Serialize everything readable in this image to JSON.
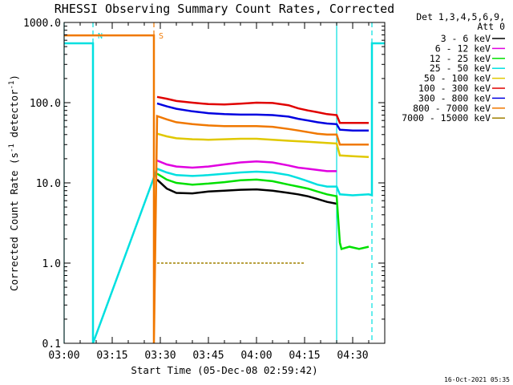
{
  "chart_data": {
    "type": "line",
    "title": "RHESSI Observing Summary Count Rates, Corrected",
    "xlabel": "Start Time (05-Dec-08 02:59:42)",
    "ylabel": "Corrected Count Rate (s",
    "ylabel_sup": "-1",
    "ylabel_mid": " detector",
    "ylabel_sup2": "-1",
    "ylabel_end": ")",
    "yscale": "log",
    "ylim": [
      0.1,
      1000
    ],
    "xlim_minutes": [
      0,
      100
    ],
    "x_ticks": [
      {
        "label": "03:00",
        "minutes": 0
      },
      {
        "label": "03:15",
        "minutes": 15
      },
      {
        "label": "03:30",
        "minutes": 30
      },
      {
        "label": "03:45",
        "minutes": 45
      },
      {
        "label": "04:00",
        "minutes": 60
      },
      {
        "label": "04:15",
        "minutes": 75
      },
      {
        "label": "04:30",
        "minutes": 90
      }
    ],
    "y_ticks": [
      {
        "label": "1000.0",
        "value": 1000
      },
      {
        "label": "100.0",
        "value": 100
      },
      {
        "label": "10.0",
        "value": 10
      },
      {
        "label": "1.0",
        "value": 1
      },
      {
        "label": "0.1",
        "value": 0.1
      }
    ],
    "legend": {
      "header1": "Det 1,3,4,5,6,9,",
      "header2": "Att 0",
      "placement": "right"
    },
    "series": [
      {
        "name": "3 - 6 keV",
        "color": "#000000",
        "x": [
          29,
          32,
          35,
          40,
          45,
          50,
          55,
          60,
          65,
          70,
          73,
          76,
          79,
          82,
          85
        ],
        "y": [
          11,
          8.5,
          7.5,
          7.4,
          7.8,
          8,
          8.2,
          8.3,
          8,
          7.5,
          7.2,
          6.8,
          6.3,
          5.8,
          5.5
        ]
      },
      {
        "name": "6 - 12 keV",
        "color": "#e000e0",
        "x": [
          29,
          32,
          35,
          40,
          45,
          50,
          55,
          60,
          65,
          70,
          73,
          76,
          79,
          82,
          85
        ],
        "y": [
          19,
          17,
          16,
          15.5,
          16,
          17,
          18,
          18.5,
          18,
          16.5,
          15.5,
          15,
          14.5,
          14,
          14
        ]
      },
      {
        "name": "12 - 25 keV",
        "color": "#00e000",
        "x": [
          29,
          32,
          35,
          40,
          45,
          50,
          55,
          60,
          65,
          70,
          73,
          76,
          79,
          82,
          85,
          86,
          86.5,
          89,
          92,
          95
        ],
        "y": [
          13,
          11,
          10,
          9.5,
          9.8,
          10.2,
          10.8,
          11,
          10.5,
          9.5,
          9,
          8.5,
          7.8,
          7.2,
          6.8,
          1.8,
          1.5,
          1.6,
          1.5,
          1.6
        ]
      },
      {
        "name": "25 - 50 keV",
        "color": "#00e0e0",
        "x": [
          0,
          9,
          9,
          29,
          32,
          35,
          40,
          45,
          50,
          55,
          60,
          65,
          70,
          73,
          76,
          79,
          82,
          85,
          86,
          90,
          95,
          96,
          96,
          100
        ],
        "y": [
          550,
          550,
          0.1,
          15,
          13.5,
          12.5,
          12.2,
          12.5,
          13,
          13.5,
          13.8,
          13.5,
          12.5,
          11.5,
          10.5,
          9.5,
          9,
          9,
          7.2,
          7,
          7.2,
          7,
          550,
          550
        ]
      },
      {
        "name": "50 - 100 keV",
        "color": "#e0c800",
        "x": [
          29,
          32,
          35,
          40,
          45,
          50,
          55,
          60,
          65,
          70,
          73,
          76,
          79,
          82,
          85,
          86,
          90,
          95
        ],
        "y": [
          41,
          38,
          36,
          35,
          34.5,
          35,
          35.5,
          35.5,
          34.5,
          33.5,
          33,
          32.5,
          32,
          31.5,
          31,
          22,
          21.5,
          21
        ]
      },
      {
        "name": "100 - 300 keV",
        "color": "#e00000",
        "x": [
          29,
          32,
          35,
          40,
          45,
          50,
          55,
          60,
          65,
          70,
          73,
          76,
          79,
          82,
          85,
          86,
          90,
          95
        ],
        "y": [
          118,
          112,
          105,
          100,
          96,
          95,
          97,
          100,
          99,
          93,
          85,
          80,
          76,
          72,
          70,
          56,
          56,
          56
        ]
      },
      {
        "name": "300 - 800 keV",
        "color": "#0000e0",
        "x": [
          29,
          32,
          35,
          40,
          45,
          50,
          55,
          60,
          65,
          70,
          73,
          76,
          79,
          82,
          85,
          86,
          90,
          95
        ],
        "y": [
          98,
          90,
          84,
          78,
          74,
          72,
          71,
          71,
          70,
          67,
          63,
          60,
          57,
          55,
          54,
          46,
          45,
          45
        ]
      },
      {
        "name": "800 - 7000 keV",
        "color": "#f07800",
        "x": [
          0,
          28,
          28,
          29,
          32,
          35,
          40,
          45,
          50,
          55,
          60,
          65,
          70,
          73,
          76,
          79,
          82,
          85,
          86,
          90,
          95
        ],
        "y": [
          690,
          690,
          0.1,
          68,
          62,
          57,
          54,
          52,
          51,
          51,
          51,
          50,
          47,
          45,
          43,
          41,
          40,
          40,
          30,
          30,
          30
        ]
      },
      {
        "name": "7000 - 15000 keV",
        "color": "#a08000",
        "x": [
          29,
          33,
          36,
          37,
          47,
          48,
          49,
          50,
          68,
          70,
          75
        ],
        "y": [
          1,
          1,
          1,
          1,
          1,
          1,
          1,
          1,
          1,
          1,
          1
        ]
      }
    ],
    "vertical_markers": [
      {
        "minutes": 9,
        "color": "#00e0e0",
        "style": "dashed",
        "label": "N"
      },
      {
        "minutes": 28,
        "color": "#f07800",
        "style": "dashed",
        "label": "S"
      },
      {
        "minutes": 0,
        "color": "#00e0e0",
        "style": "solid",
        "label": ""
      },
      {
        "minutes": 85,
        "color": "#00e0e0",
        "style": "solid",
        "label": ""
      },
      {
        "minutes": 96,
        "color": "#00e0e0",
        "style": "dashed",
        "label": ""
      }
    ]
  },
  "footer_timestamp": "16-Oct-2021 05:35"
}
